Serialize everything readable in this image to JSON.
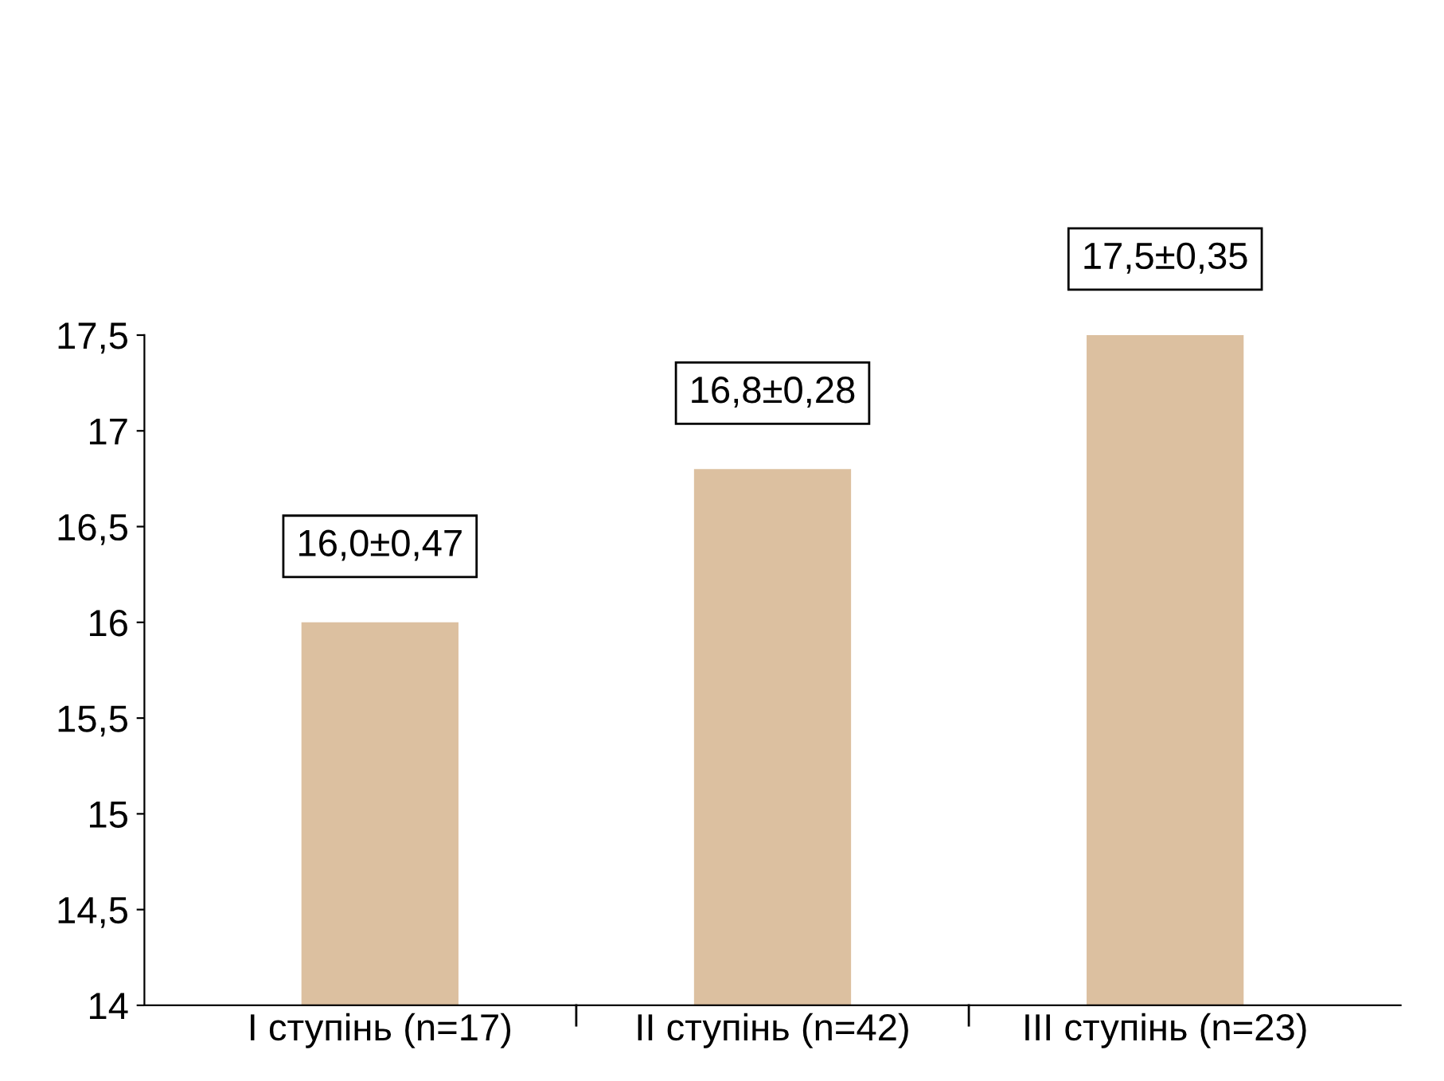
{
  "chart_data": {
    "type": "bar",
    "categories": [
      "I ступінь (n=17)",
      "II ступінь (n=42)",
      "III ступінь (n=23)"
    ],
    "values": [
      16.0,
      16.8,
      17.5
    ],
    "value_labels": [
      "16,0±0,47",
      "16,8±0,28",
      "17,5±0,35"
    ],
    "color": "#dcc0a0",
    "ylim": [
      14,
      17.5
    ],
    "yticks": [
      {
        "value": 14,
        "label": "14"
      },
      {
        "value": 14.5,
        "label": "14,5"
      },
      {
        "value": 15,
        "label": "15"
      },
      {
        "value": 15.5,
        "label": "15,5"
      },
      {
        "value": 16,
        "label": "16"
      },
      {
        "value": 16.5,
        "label": "16,5"
      },
      {
        "value": 17,
        "label": "17"
      },
      {
        "value": 17.5,
        "label": "17,5"
      }
    ],
    "grid": false
  }
}
